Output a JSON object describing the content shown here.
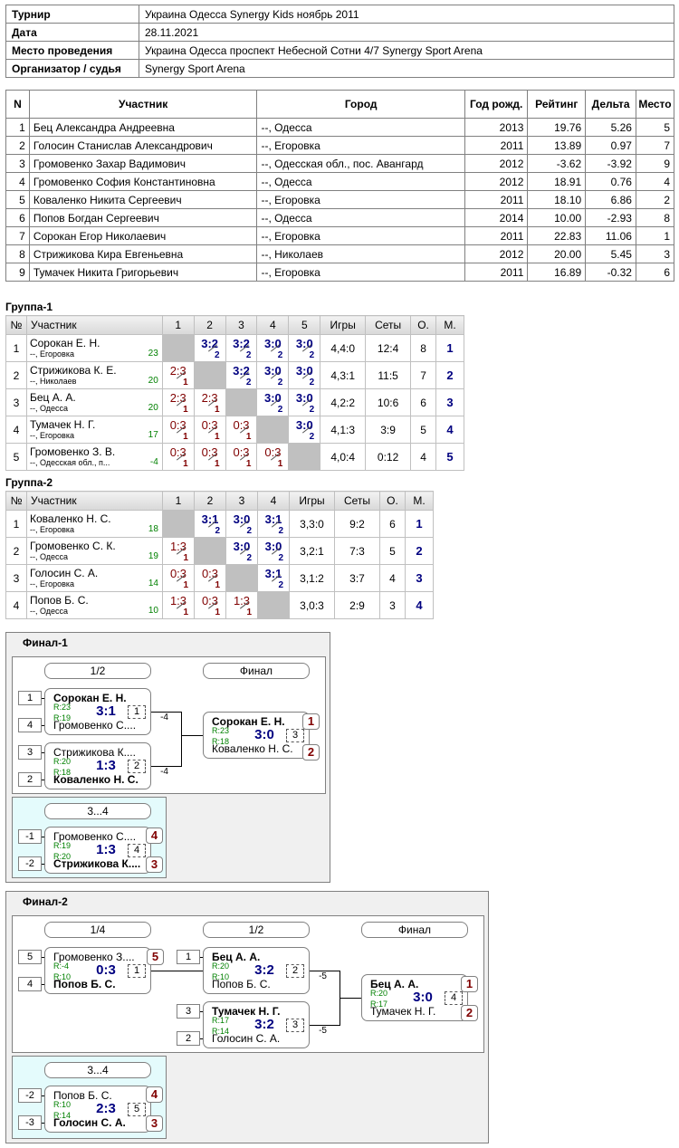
{
  "info": [
    {
      "k": "Турнир",
      "v": "Украина Одесса Synergy Kids ноябрь 2011"
    },
    {
      "k": "Дата",
      "v": "28.11.2021"
    },
    {
      "k": "Место проведения",
      "v": "Украина Одесса проспект Небесной Сотни 4/7 Synergy Sport Arena"
    },
    {
      "k": "Организатор / судья",
      "v": "Synergy Sport Arena"
    }
  ],
  "participants": {
    "headers": [
      "N",
      "Участник",
      "Город",
      "Год рожд.",
      "Рейтинг",
      "Дельта",
      "Место"
    ],
    "rows": [
      [
        "1",
        "Бец Александра Андреевна",
        "--, Одесса",
        "2013",
        "19.76",
        "5.26",
        "5"
      ],
      [
        "2",
        "Голосин Станислав Александрович",
        "--, Егоровка",
        "2011",
        "13.89",
        "0.97",
        "7"
      ],
      [
        "3",
        "Громовенко Захар Вадимович",
        "--, Одесская обл., пос. Авангард",
        "2012",
        "-3.62",
        "-3.92",
        "9"
      ],
      [
        "4",
        "Громовенко София Константиновна",
        "--, Одесса",
        "2012",
        "18.91",
        "0.76",
        "4"
      ],
      [
        "5",
        "Коваленко Никита Сергеевич",
        "--, Егоровка",
        "2011",
        "18.10",
        "6.86",
        "2"
      ],
      [
        "6",
        "Попов Богдан Сергеевич",
        "--, Одесса",
        "2014",
        "10.00",
        "-2.93",
        "8"
      ],
      [
        "7",
        "Сорокан Егор Николаевич",
        "--, Егоровка",
        "2011",
        "22.83",
        "11.06",
        "1"
      ],
      [
        "8",
        "Стрижикова Кира Евгеньевна",
        "--, Николаев",
        "2012",
        "20.00",
        "5.45",
        "3"
      ],
      [
        "9",
        "Тумачек Никита Григорьевич",
        "--, Егоровка",
        "2011",
        "16.89",
        "-0.32",
        "6"
      ]
    ]
  },
  "group1": {
    "title": "Группа-1",
    "headers": [
      "№",
      "Участник",
      "1",
      "2",
      "3",
      "4",
      "5",
      "Игры",
      "Сеты",
      "О.",
      "М."
    ],
    "rows": [
      {
        "n": "1",
        "name": "Сорокан Е. Н.",
        "city": "--, Егоровка",
        "rating": "23",
        "cells": [
          null,
          [
            "3:2",
            "2",
            "w"
          ],
          [
            "3:2",
            "2",
            "w"
          ],
          [
            "3:0",
            "2",
            "w"
          ],
          [
            "3:0",
            "2",
            "w"
          ]
        ],
        "games": "4,4:0",
        "sets": "12:4",
        "pts": "8",
        "place": "1"
      },
      {
        "n": "2",
        "name": "Стрижикова К. Е.",
        "city": "--, Николаев",
        "rating": "20",
        "cells": [
          [
            "2:3",
            "1",
            "l"
          ],
          null,
          [
            "3:2",
            "2",
            "w"
          ],
          [
            "3:0",
            "2",
            "w"
          ],
          [
            "3:0",
            "2",
            "w"
          ]
        ],
        "games": "4,3:1",
        "sets": "11:5",
        "pts": "7",
        "place": "2"
      },
      {
        "n": "3",
        "name": "Бец А. А.",
        "city": "--, Одесса",
        "rating": "20",
        "cells": [
          [
            "2:3",
            "1",
            "l"
          ],
          [
            "2:3",
            "1",
            "l"
          ],
          null,
          [
            "3:0",
            "2",
            "w"
          ],
          [
            "3:0",
            "2",
            "w"
          ]
        ],
        "games": "4,2:2",
        "sets": "10:6",
        "pts": "6",
        "place": "3"
      },
      {
        "n": "4",
        "name": "Тумачек Н. Г.",
        "city": "--, Егоровка",
        "rating": "17",
        "cells": [
          [
            "0:3",
            "1",
            "l"
          ],
          [
            "0:3",
            "1",
            "l"
          ],
          [
            "0:3",
            "1",
            "l"
          ],
          null,
          [
            "3:0",
            "2",
            "w"
          ]
        ],
        "games": "4,1:3",
        "sets": "3:9",
        "pts": "5",
        "place": "4"
      },
      {
        "n": "5",
        "name": "Громовенко З. В.",
        "city": "--, Одесская обл., п...",
        "rating": "-4",
        "cells": [
          [
            "0:3",
            "1",
            "l"
          ],
          [
            "0:3",
            "1",
            "l"
          ],
          [
            "0:3",
            "1",
            "l"
          ],
          [
            "0:3",
            "1",
            "l"
          ],
          null
        ],
        "games": "4,0:4",
        "sets": "0:12",
        "pts": "4",
        "place": "5"
      }
    ]
  },
  "group2": {
    "title": "Группа-2",
    "headers": [
      "№",
      "Участник",
      "1",
      "2",
      "3",
      "4",
      "Игры",
      "Сеты",
      "О.",
      "М."
    ],
    "rows": [
      {
        "n": "1",
        "name": "Коваленко Н. С.",
        "city": "--, Егоровка",
        "rating": "18",
        "cells": [
          null,
          [
            "3:1",
            "2",
            "w"
          ],
          [
            "3:0",
            "2",
            "w"
          ],
          [
            "3:1",
            "2",
            "w"
          ]
        ],
        "games": "3,3:0",
        "sets": "9:2",
        "pts": "6",
        "place": "1"
      },
      {
        "n": "2",
        "name": "Громовенко С. К.",
        "city": "--, Одесса",
        "rating": "19",
        "cells": [
          [
            "1:3",
            "1",
            "l"
          ],
          null,
          [
            "3:0",
            "2",
            "w"
          ],
          [
            "3:0",
            "2",
            "w"
          ]
        ],
        "games": "3,2:1",
        "sets": "7:3",
        "pts": "5",
        "place": "2"
      },
      {
        "n": "3",
        "name": "Голосин С. А.",
        "city": "--, Егоровка",
        "rating": "14",
        "cells": [
          [
            "0:3",
            "1",
            "l"
          ],
          [
            "0:3",
            "1",
            "l"
          ],
          null,
          [
            "3:1",
            "2",
            "w"
          ]
        ],
        "games": "3,1:2",
        "sets": "3:7",
        "pts": "4",
        "place": "3"
      },
      {
        "n": "4",
        "name": "Попов Б. С.",
        "city": "--, Одесса",
        "rating": "10",
        "cells": [
          [
            "1:3",
            "1",
            "l"
          ],
          [
            "0:3",
            "1",
            "l"
          ],
          [
            "1:3",
            "1",
            "l"
          ],
          null
        ],
        "games": "3,0:3",
        "sets": "2:9",
        "pts": "3",
        "place": "4"
      }
    ]
  },
  "final1": {
    "title": "Финал-1",
    "label_half": "1/2",
    "label_final": "Финал",
    "label_third": "3...4",
    "m1": {
      "top": "Сорокан Е. Н.",
      "bottom": "Громовенко С....",
      "r1": "R:23",
      "r2": "R:19",
      "score": "3:1",
      "num": "1",
      "delta": "-4",
      "seed_top": "1",
      "seed_bottom": "4"
    },
    "m2": {
      "top": "Стрижикова К....",
      "bottom": "Коваленко Н. С.",
      "r1": "R:20",
      "r2": "R:18",
      "score": "1:3",
      "num": "2",
      "delta": "-4",
      "seed_top": "3",
      "seed_bottom": "2"
    },
    "mf": {
      "top": "Сорокан Е. Н.",
      "bottom": "Коваленко Н. С.",
      "r1": "R:23",
      "r2": "R:18",
      "score": "3:0",
      "num": "3",
      "rank_top": "1",
      "rank_bottom": "2"
    },
    "m3": {
      "top": "Громовенко С....",
      "bottom": "Стрижикова К....",
      "r1": "R:19",
      "r2": "R:20",
      "score": "1:3",
      "num": "4",
      "seed_top": "-1",
      "seed_bottom": "-2",
      "rank_top": "4",
      "rank_bottom": "3"
    }
  },
  "final2": {
    "title": "Финал-2",
    "label_quarter": "1/4",
    "label_half": "1/2",
    "label_final": "Финал",
    "label_third": "3...4",
    "q1": {
      "top": "Громовенко З....",
      "bottom": "Попов Б. С.",
      "r1": "R:-4",
      "r2": "R:10",
      "score": "0:3",
      "num": "1",
      "seed_top": "5",
      "seed_bottom": "4",
      "rank_top": "5"
    },
    "s1": {
      "top": "Бец А. А.",
      "bottom": "Попов Б. С.",
      "r1": "R:20",
      "r2": "R:10",
      "score": "3:2",
      "num": "2",
      "delta": "-5",
      "seed_top": "1"
    },
    "s2": {
      "top": "Тумачек Н. Г.",
      "bottom": "Голосин С. А.",
      "r1": "R:17",
      "r2": "R:14",
      "score": "3:2",
      "num": "3",
      "delta": "-5",
      "seed_top": "3",
      "seed_bottom": "2"
    },
    "f": {
      "top": "Бец А. А.",
      "bottom": "Тумачек Н. Г.",
      "r1": "R:20",
      "r2": "R:17",
      "score": "3:0",
      "num": "4",
      "rank_top": "1",
      "rank_bottom": "2"
    },
    "t": {
      "top": "Попов Б. С.",
      "bottom": "Голосин С. А.",
      "r1": "R:10",
      "r2": "R:14",
      "score": "2:3",
      "num": "5",
      "seed_top": "-2",
      "seed_bottom": "-3",
      "rank_top": "4",
      "rank_bottom": "3"
    }
  }
}
